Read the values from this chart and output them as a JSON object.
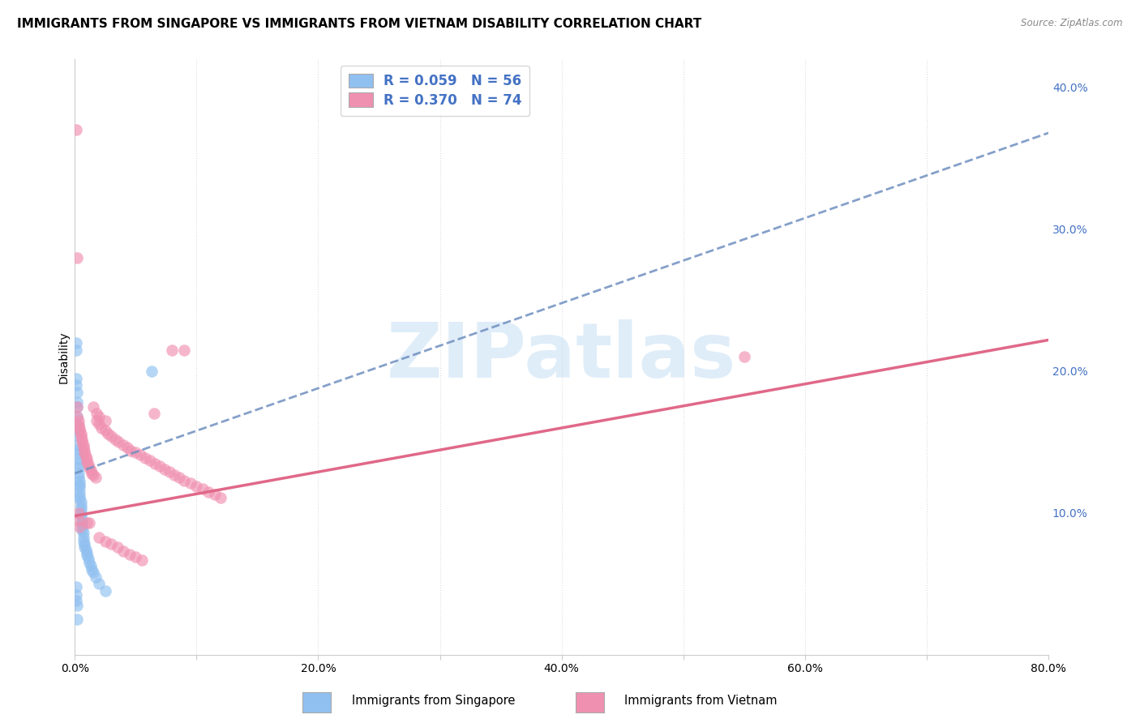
{
  "title": "IMMIGRANTS FROM SINGAPORE VS IMMIGRANTS FROM VIETNAM DISABILITY CORRELATION CHART",
  "source": "Source: ZipAtlas.com",
  "ylabel": "Disability",
  "xlim": [
    0.0,
    0.8
  ],
  "ylim": [
    0.0,
    0.42
  ],
  "xticks": [
    0.0,
    0.1,
    0.2,
    0.3,
    0.4,
    0.5,
    0.6,
    0.7,
    0.8
  ],
  "xticklabels": [
    "0.0%",
    "",
    "20.0%",
    "",
    "40.0%",
    "",
    "60.0%",
    "",
    "80.0%"
  ],
  "yticks_right": [
    0.1,
    0.2,
    0.3,
    0.4
  ],
  "yticklabels_right": [
    "10.0%",
    "20.0%",
    "30.0%",
    "40.0%"
  ],
  "singapore_color": "#90c0f0",
  "vietnam_color": "#f090b0",
  "singapore_line_color": "#7090c0",
  "vietnam_line_color": "#e06888",
  "watermark_text": "ZIPatlas",
  "background_color": "#ffffff",
  "grid_color": "#dddddd",
  "title_fontsize": 11,
  "axis_label_fontsize": 10,
  "tick_fontsize": 10,
  "legend_R_sg": "R = 0.059",
  "legend_N_sg": "N = 56",
  "legend_R_vn": "R = 0.370",
  "legend_N_vn": "N = 74",
  "sg_intercept": 0.128,
  "sg_slope": 0.3,
  "vn_intercept": 0.098,
  "vn_slope": 0.155,
  "singapore_points_x": [
    0.001,
    0.001,
    0.001,
    0.001,
    0.002,
    0.002,
    0.002,
    0.002,
    0.002,
    0.002,
    0.002,
    0.002,
    0.003,
    0.003,
    0.003,
    0.003,
    0.003,
    0.003,
    0.003,
    0.004,
    0.004,
    0.004,
    0.004,
    0.004,
    0.004,
    0.005,
    0.005,
    0.005,
    0.005,
    0.005,
    0.006,
    0.006,
    0.006,
    0.006,
    0.007,
    0.007,
    0.007,
    0.008,
    0.008,
    0.009,
    0.01,
    0.01,
    0.011,
    0.012,
    0.013,
    0.014,
    0.015,
    0.017,
    0.02,
    0.025,
    0.001,
    0.001,
    0.001,
    0.002,
    0.002,
    0.063
  ],
  "singapore_points_y": [
    0.22,
    0.215,
    0.195,
    0.19,
    0.185,
    0.178,
    0.175,
    0.168,
    0.162,
    0.158,
    0.155,
    0.148,
    0.145,
    0.142,
    0.138,
    0.135,
    0.132,
    0.128,
    0.125,
    0.122,
    0.12,
    0.118,
    0.115,
    0.112,
    0.11,
    0.108,
    0.105,
    0.103,
    0.1,
    0.098,
    0.095,
    0.093,
    0.09,
    0.088,
    0.086,
    0.083,
    0.08,
    0.078,
    0.076,
    0.074,
    0.072,
    0.07,
    0.068,
    0.065,
    0.063,
    0.06,
    0.058,
    0.055,
    0.05,
    0.045,
    0.048,
    0.042,
    0.038,
    0.035,
    0.025,
    0.2
  ],
  "vietnam_points_x": [
    0.001,
    0.002,
    0.002,
    0.003,
    0.003,
    0.004,
    0.004,
    0.005,
    0.005,
    0.006,
    0.006,
    0.007,
    0.007,
    0.008,
    0.008,
    0.009,
    0.01,
    0.01,
    0.011,
    0.012,
    0.013,
    0.014,
    0.015,
    0.017,
    0.018,
    0.02,
    0.022,
    0.025,
    0.027,
    0.03,
    0.033,
    0.036,
    0.04,
    0.043,
    0.046,
    0.05,
    0.054,
    0.058,
    0.062,
    0.066,
    0.07,
    0.074,
    0.078,
    0.082,
    0.086,
    0.09,
    0.095,
    0.1,
    0.105,
    0.11,
    0.115,
    0.12,
    0.002,
    0.015,
    0.018,
    0.02,
    0.025,
    0.065,
    0.08,
    0.09,
    0.01,
    0.012,
    0.003,
    0.003,
    0.004,
    0.02,
    0.025,
    0.03,
    0.035,
    0.04,
    0.045,
    0.05,
    0.055,
    0.55
  ],
  "vietnam_points_y": [
    0.37,
    0.175,
    0.168,
    0.165,
    0.162,
    0.16,
    0.158,
    0.156,
    0.154,
    0.152,
    0.15,
    0.148,
    0.146,
    0.144,
    0.142,
    0.14,
    0.138,
    0.136,
    0.134,
    0.132,
    0.13,
    0.128,
    0.127,
    0.125,
    0.165,
    0.163,
    0.16,
    0.158,
    0.156,
    0.154,
    0.152,
    0.15,
    0.148,
    0.146,
    0.144,
    0.143,
    0.141,
    0.139,
    0.137,
    0.135,
    0.133,
    0.131,
    0.129,
    0.127,
    0.125,
    0.123,
    0.121,
    0.119,
    0.117,
    0.115,
    0.113,
    0.111,
    0.28,
    0.175,
    0.17,
    0.168,
    0.165,
    0.17,
    0.215,
    0.215,
    0.093,
    0.093,
    0.1,
    0.095,
    0.09,
    0.083,
    0.08,
    0.078,
    0.076,
    0.073,
    0.071,
    0.069,
    0.067,
    0.21
  ]
}
